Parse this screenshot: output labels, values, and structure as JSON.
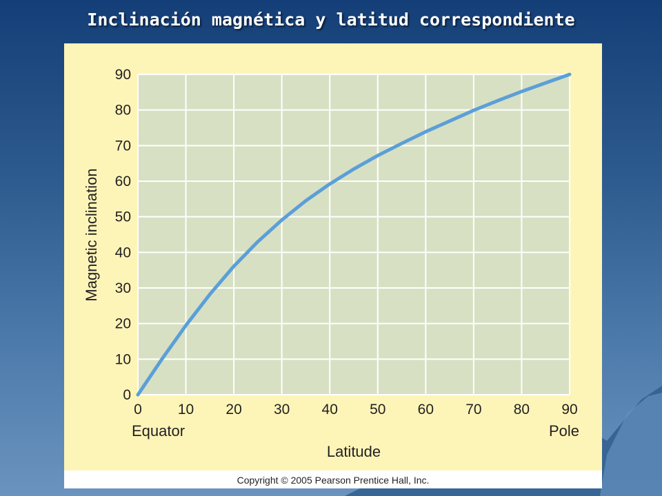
{
  "slide": {
    "title": "Inclinación magnética y latitud correspondiente"
  },
  "colors": {
    "panel_fill": "#fdf5b8",
    "plot_fill": "#d7e0c3",
    "curve": "#5b9fd8",
    "footer": "#ffffff"
  },
  "chart_data": {
    "type": "line",
    "title": "",
    "xlabel": "Latitude",
    "ylabel": "Magnetic inclination",
    "x_end_labels": {
      "left": "Equator",
      "right": "Pole"
    },
    "xlim": [
      0,
      90
    ],
    "ylim": [
      0,
      90
    ],
    "xticks": [
      0,
      10,
      20,
      30,
      40,
      50,
      60,
      70,
      80,
      90
    ],
    "yticks": [
      0,
      10,
      20,
      30,
      40,
      50,
      60,
      70,
      80,
      90
    ],
    "grid": true,
    "series": [
      {
        "x": [
          0,
          5,
          10,
          15,
          20,
          25,
          30,
          35,
          40,
          45,
          50,
          55,
          60,
          65,
          70,
          75,
          80,
          85,
          90
        ],
        "y": [
          0,
          10,
          19.5,
          28.2,
          36.1,
          43.0,
          49.1,
          54.5,
          59.2,
          63.4,
          67.2,
          70.6,
          73.9,
          76.9,
          79.9,
          82.6,
          85.2,
          87.6,
          90
        ]
      }
    ],
    "copyright": "Copyright © 2005 Pearson Prentice Hall, Inc."
  }
}
